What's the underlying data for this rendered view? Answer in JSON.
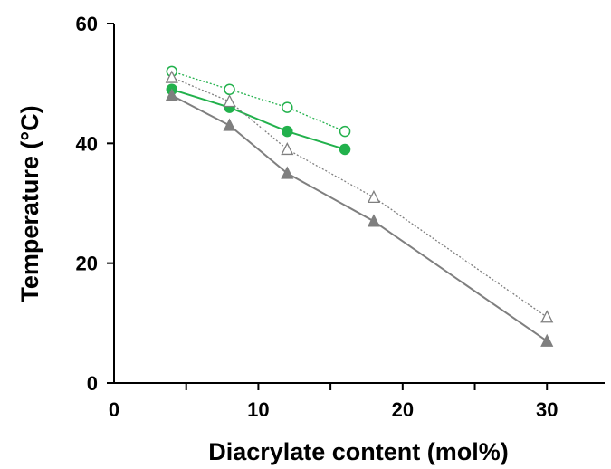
{
  "chart_data": {
    "type": "scatter",
    "xlabel": "Diacrylate content (mol%)",
    "ylabel": "Temperature (°C)",
    "xlim": [
      0,
      34
    ],
    "ylim": [
      0,
      60
    ],
    "xticks": [
      0,
      10,
      20,
      30
    ],
    "yticks": [
      0,
      20,
      40,
      60
    ],
    "grid": false,
    "legend": "none",
    "series": [
      {
        "marker": "circle-open",
        "color": "#22b14c",
        "line": "dotted",
        "x": [
          4,
          8,
          12,
          16
        ],
        "y": [
          52,
          49,
          46,
          42
        ]
      },
      {
        "marker": "circle-filled",
        "color": "#22b14c",
        "line": "solid",
        "x": [
          4,
          8,
          12,
          16
        ],
        "y": [
          49,
          46,
          42,
          39
        ]
      },
      {
        "marker": "triangle-open",
        "color": "#7f7f7f",
        "line": "dotted",
        "x": [
          4,
          8,
          12,
          18,
          30
        ],
        "y": [
          51,
          47,
          39,
          31,
          11
        ]
      },
      {
        "marker": "triangle-filled",
        "color": "#7f7f7f",
        "line": "solid",
        "x": [
          4,
          8,
          12,
          18,
          30
        ],
        "y": [
          48,
          43,
          35,
          27,
          7
        ]
      }
    ]
  }
}
